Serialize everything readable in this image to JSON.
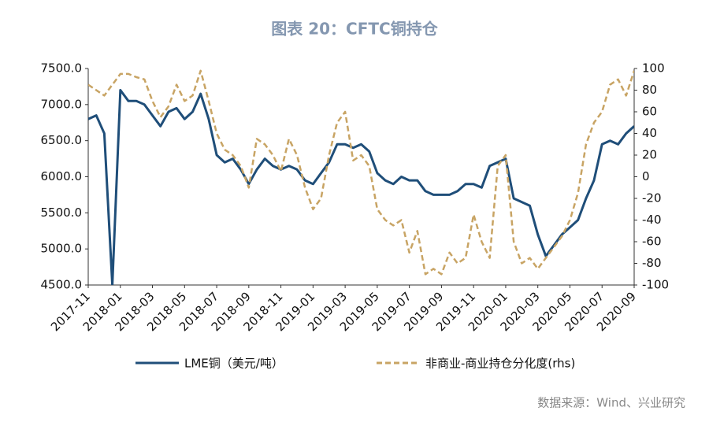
{
  "chart_data": {
    "type": "line",
    "title": "图表 20：CFTC铜持仓",
    "source": "数据来源：Wind、兴业研究",
    "categories": [
      "2017-11",
      null,
      null,
      null,
      "2018-01",
      null,
      null,
      null,
      "2018-03",
      null,
      null,
      null,
      "2018-05",
      null,
      null,
      null,
      "2018-07",
      null,
      null,
      null,
      "2018-09",
      null,
      null,
      null,
      "2018-11",
      null,
      null,
      null,
      "2019-01",
      null,
      null,
      null,
      "2019-03",
      null,
      null,
      null,
      "2019-05",
      null,
      null,
      null,
      "2019-07",
      null,
      null,
      null,
      "2019-09",
      null,
      null,
      null,
      "2019-11",
      null,
      null,
      null,
      "2020-01",
      null,
      null,
      null,
      "2020-03",
      null,
      null,
      null,
      "2020-05",
      null,
      null,
      null,
      "2020-07",
      null,
      null,
      null,
      "2020-09"
    ],
    "series": [
      {
        "name": "LME铜（美元/吨）",
        "color": "#1f4e79",
        "axis": "y",
        "values": [
          6800,
          6850,
          6600,
          4500,
          7200,
          7050,
          7050,
          7000,
          6850,
          6700,
          6900,
          6950,
          6800,
          6900,
          7150,
          6800,
          6300,
          6200,
          6250,
          6100,
          5900,
          6100,
          6250,
          6150,
          6100,
          6150,
          6100,
          5950,
          5900,
          6050,
          6200,
          6450,
          6450,
          6400,
          6450,
          6350,
          6050,
          5950,
          5900,
          6000,
          5950,
          5950,
          5800,
          5750,
          5750,
          5750,
          5800,
          5900,
          5900,
          5850,
          6150,
          6200,
          6250,
          5700,
          5650,
          5600,
          5200,
          4900,
          5050,
          5200,
          5300,
          5400,
          5700,
          5950,
          6450,
          6500,
          6450,
          6600,
          6700
        ]
      },
      {
        "name": "非商业-商业持仓分化度(rhs)",
        "color": "#c8a464",
        "axis": "y2",
        "dashed": true,
        "values": [
          85,
          80,
          75,
          85,
          95,
          95,
          92,
          90,
          70,
          55,
          65,
          85,
          70,
          75,
          98,
          70,
          40,
          25,
          20,
          10,
          -10,
          35,
          30,
          20,
          5,
          35,
          20,
          -10,
          -30,
          -20,
          20,
          50,
          60,
          15,
          20,
          10,
          -30,
          -40,
          -45,
          -40,
          -70,
          -50,
          -90,
          -85,
          -90,
          -70,
          -80,
          -75,
          -35,
          -60,
          -75,
          10,
          20,
          -60,
          -80,
          -75,
          -85,
          -75,
          -65,
          -55,
          -40,
          -15,
          30,
          50,
          60,
          85,
          90,
          75,
          98
        ]
      }
    ],
    "ylim": [
      4500,
      7500
    ],
    "yticks": [
      {
        "value": 4500,
        "label": "4500.0"
      },
      {
        "value": 5000,
        "label": "5000.0"
      },
      {
        "value": 5500,
        "label": "5500.0"
      },
      {
        "value": 6000,
        "label": "6000.0"
      },
      {
        "value": 6500,
        "label": "6500.0"
      },
      {
        "value": 7000,
        "label": "7000.0"
      },
      {
        "value": 7500,
        "label": "7500.0"
      }
    ],
    "y2lim": [
      -100,
      100
    ],
    "y2ticks": [
      -100,
      -80,
      -60,
      -40,
      -20,
      0,
      20,
      40,
      60,
      80,
      100
    ],
    "legend": "bottom"
  }
}
